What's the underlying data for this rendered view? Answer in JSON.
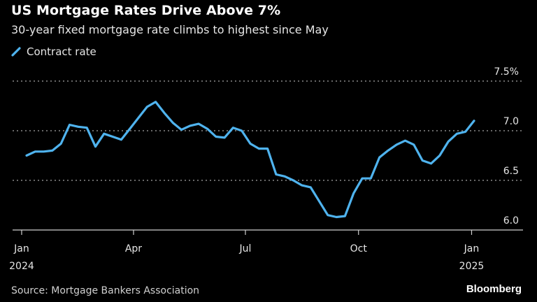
{
  "chart_data": {
    "type": "line",
    "title": "US Mortgage Rates Drive Above 7%",
    "subtitle": "30-year fixed mortgage rate climbs to highest since May",
    "source": "Source: Mortgage Bankers Association",
    "brand": "Bloomberg",
    "ylim": [
      6.0,
      7.5
    ],
    "y_ticks": [
      {
        "value": 6.0,
        "label": "6.0"
      },
      {
        "value": 6.5,
        "label": "6.5"
      },
      {
        "value": 7.0,
        "label": "7.0"
      },
      {
        "value": 7.5,
        "label": "7.5%"
      }
    ],
    "x_ticks": [
      {
        "date": "2024-01-01",
        "label": "Jan",
        "sublabel": "2024"
      },
      {
        "date": "2024-04-01",
        "label": "Apr",
        "sublabel": ""
      },
      {
        "date": "2024-07-01",
        "label": "Jul",
        "sublabel": ""
      },
      {
        "date": "2024-10-01",
        "label": "Oct",
        "sublabel": ""
      },
      {
        "date": "2025-01-01",
        "label": "Jan",
        "sublabel": "2025"
      }
    ],
    "grid": true,
    "legend_position": "top-left",
    "series": [
      {
        "name": "Contract rate",
        "color": "#4fb3ee",
        "start_date": "2024-01-05",
        "frequency": "weekly",
        "values": [
          6.75,
          6.79,
          6.79,
          6.8,
          6.87,
          7.06,
          7.04,
          7.03,
          6.84,
          6.97,
          6.94,
          6.91,
          7.02,
          7.13,
          7.24,
          7.29,
          7.18,
          7.08,
          7.01,
          7.05,
          7.07,
          7.02,
          6.94,
          6.93,
          7.03,
          7.0,
          6.87,
          6.82,
          6.82,
          6.56,
          6.54,
          6.5,
          6.45,
          6.43,
          6.29,
          6.15,
          6.13,
          6.14,
          6.37,
          6.52,
          6.52,
          6.73,
          6.8,
          6.86,
          6.9,
          6.86,
          6.7,
          6.67,
          6.75,
          6.89,
          6.97,
          6.99,
          7.1
        ]
      }
    ]
  }
}
